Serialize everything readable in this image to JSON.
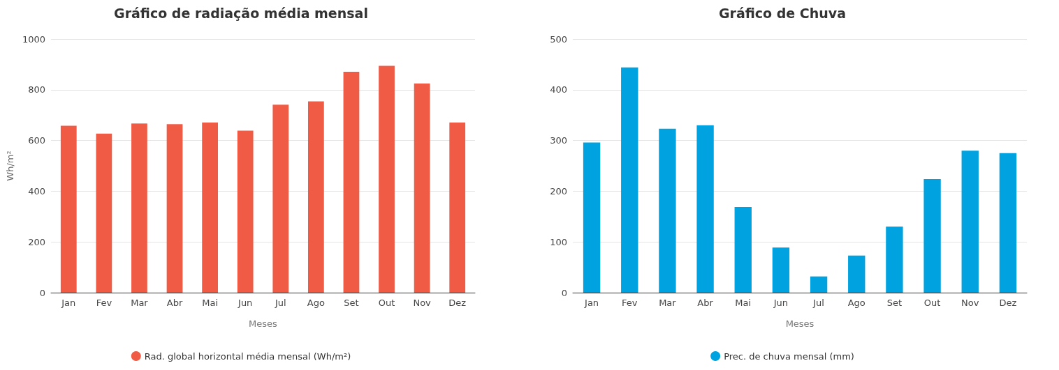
{
  "chart_data": [
    {
      "type": "bar",
      "title": "Gráfico de radiação média mensal",
      "xlabel": "Meses",
      "ylabel": "Wh/m²",
      "categories": [
        "Jan",
        "Fev",
        "Mar",
        "Abr",
        "Mai",
        "Jun",
        "Jul",
        "Ago",
        "Set",
        "Out",
        "Nov",
        "Dez"
      ],
      "series": [
        {
          "name": "Rad. global horizontal média mensal (Wh/m²)",
          "color": "#ef5b45",
          "values": [
            658,
            627,
            667,
            664,
            671,
            639,
            741,
            754,
            871,
            894,
            825,
            671
          ]
        }
      ],
      "ylim": [
        0,
        1000
      ],
      "yticks": [
        0,
        200,
        400,
        600,
        800,
        1000
      ],
      "grid": "y",
      "legend": "bottom"
    },
    {
      "type": "bar",
      "title": "Gráfico de Chuva",
      "xlabel": "Meses",
      "categories": [
        "Jan",
        "Fev",
        "Mar",
        "Abr",
        "Mai",
        "Jun",
        "Jul",
        "Ago",
        "Set",
        "Out",
        "Nov",
        "Dez"
      ],
      "series": [
        {
          "name": "Prec. de chuva mensal (mm)",
          "color": "#00a3e0",
          "values": [
            296,
            444,
            323,
            330,
            169,
            89,
            32,
            73,
            130,
            224,
            280,
            275
          ]
        }
      ],
      "ylim": [
        0,
        500
      ],
      "yticks": [
        0,
        100,
        200,
        300,
        400,
        500
      ],
      "grid": "y",
      "legend": "bottom"
    }
  ]
}
